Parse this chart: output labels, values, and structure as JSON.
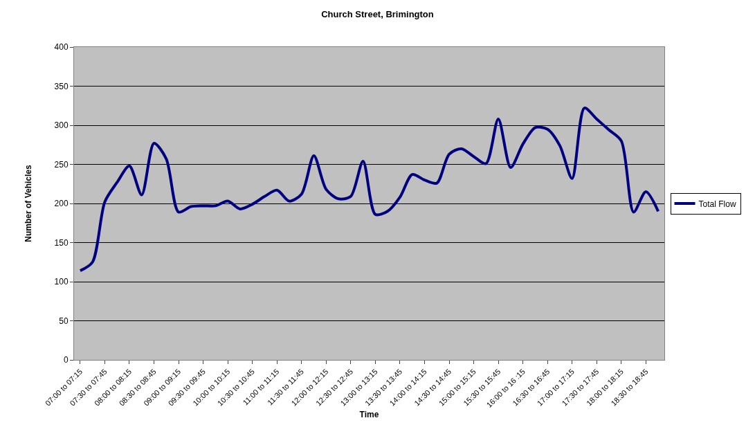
{
  "chart_data": {
    "type": "line",
    "title": "Church Street, Brimington",
    "xlabel": "Time",
    "ylabel": "Number of Vehicles",
    "categories": [
      "07:00 to 07:15",
      null,
      "07:30 to 07:45",
      null,
      "08:00 to 08:15",
      null,
      "08:30 to 08:45",
      null,
      "09:00 to 09:15",
      null,
      "09:30 to 09:45",
      null,
      "10:00 to 10:15",
      null,
      "10:30 to 10:45",
      null,
      "11:00 to 11:15",
      null,
      "11:30 to 11:45",
      null,
      "12:00 to 12:15",
      null,
      "12:30 to 12:45",
      null,
      "13:00 to 13:15",
      null,
      "13:30 to 13:45",
      null,
      "14:00 to 14:15",
      null,
      "14:30 to 14:45",
      null,
      "15:00 to 15:15",
      null,
      "15:30 to 15:45",
      null,
      "16:00 to 16 :15",
      null,
      "16:30 to 16:45",
      null,
      "17:00 to 17:15",
      null,
      "17:30 to 17:45",
      null,
      "18:00 to 18:15",
      null,
      "18:30 to 18:45",
      null
    ],
    "series": [
      {
        "name": "Total Flow",
        "color": "#000080",
        "values": [
          114,
          125,
          202,
          227,
          248,
          211,
          277,
          257,
          189,
          196,
          197,
          197,
          203,
          193,
          199,
          209,
          217,
          203,
          212,
          261,
          218,
          206,
          209,
          254,
          186,
          190,
          208,
          237,
          230,
          226,
          263,
          270,
          260,
          251,
          308,
          246,
          276,
          297,
          295,
          274,
          232,
          322,
          308,
          294,
          280,
          189,
          215,
          190
        ]
      }
    ],
    "ylim": [
      0,
      400
    ],
    "yticks": [
      0,
      50,
      100,
      150,
      200,
      250,
      300,
      350,
      400
    ],
    "grid": "y",
    "legend": "right",
    "marker": "none",
    "line_style": "solid"
  }
}
